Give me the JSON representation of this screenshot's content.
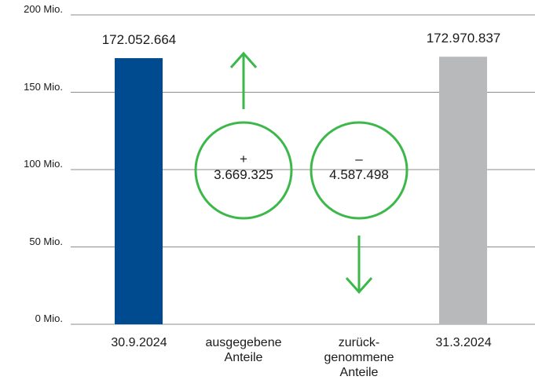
{
  "chart_data": {
    "type": "waterfall",
    "categories": [
      "30.9.2024",
      "ausgegebene\nAnteile",
      "zurück-\ngenommene\nAnteile",
      "31.3.2024"
    ],
    "values": [
      172052664,
      3669325,
      -4587498,
      172970837
    ],
    "value_labels": [
      "172.052.664",
      "+\n3.669.325",
      "–\n4.587.498",
      "172.970.837"
    ],
    "colors": [
      "#004a8f",
      "#3cb84a",
      "#3cb84a",
      "#b8b9bb"
    ],
    "ylim": [
      0,
      200000000
    ],
    "yticks": [
      {
        "value": 0,
        "label": "0 Mio."
      },
      {
        "value": 50000000,
        "label": "50 Mio."
      },
      {
        "value": 100000000,
        "label": "100 Mio."
      },
      {
        "value": 150000000,
        "label": "150 Mio."
      },
      {
        "value": 200000000,
        "label": "200 Mio."
      }
    ],
    "grid": true
  }
}
